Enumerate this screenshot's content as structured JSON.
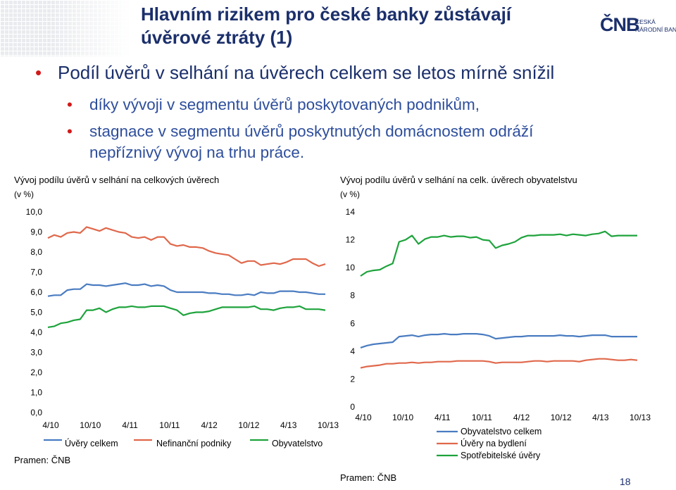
{
  "slide": {
    "title": "Hlavním rizikem pro české banky zůstávají úvěrové ztráty (1)",
    "logo": {
      "mark": "ČNB",
      "line1": "ČESKÁ",
      "line2": "NÁRODNÍ BANKA"
    },
    "bullet_main": "Podíl úvěrů v selhání na úvěrech celkem se letos mírně snížil",
    "bullet_sub1": "díky vývoji v segmentu úvěrů poskytovaných podnikům,",
    "bullet_sub2_line1": "stagnace v segmentu úvěrů poskytnutých domácnostem odráží",
    "bullet_sub2_line2": "nepříznivý vývoj na trhu práce.",
    "page_number": "18",
    "colors": {
      "blue": "#4a7cc1",
      "red": "#e0684b",
      "green": "#1ea33c",
      "title": "#1b2f6b",
      "bullet": "#d11a1a"
    }
  },
  "chart_data": [
    {
      "type": "line",
      "title": "Vývoj podílu úvěrů v selhání na celkových úvěrech",
      "unit": "(v %)",
      "source": "Pramen: ČNB",
      "ylim": [
        0,
        10
      ],
      "y_ticks": [
        "0,0",
        "1,0",
        "2,0",
        "3,0",
        "4,0",
        "5,0",
        "6,0",
        "7,0",
        "8,0",
        "9,0",
        "10,0"
      ],
      "x_ticks": [
        "4/10",
        "10/10",
        "4/11",
        "10/11",
        "4/12",
        "10/12",
        "4/13",
        "10/13"
      ],
      "x_range": [
        0,
        42
      ],
      "legend_position": "bottom",
      "series": [
        {
          "name": "Úvěry celkem",
          "color": "#4a7cc1",
          "values": [
            5.8,
            5.85,
            5.85,
            6.1,
            6.15,
            6.15,
            6.4,
            6.35,
            6.35,
            6.3,
            6.35,
            6.4,
            6.45,
            6.35,
            6.35,
            6.4,
            6.3,
            6.35,
            6.3,
            6.1,
            6.0,
            6.0,
            6.0,
            6.0,
            6.0,
            5.95,
            5.95,
            5.9,
            5.9,
            5.85,
            5.85,
            5.9,
            5.85,
            6.0,
            5.95,
            5.95,
            6.05,
            6.05,
            6.05,
            6.0,
            6.0,
            5.95,
            5.9,
            5.9
          ]
        },
        {
          "name": "Nefinanční podniky",
          "color": "#e0684b",
          "values": [
            8.7,
            8.85,
            8.75,
            8.95,
            9.0,
            8.95,
            9.25,
            9.15,
            9.05,
            9.2,
            9.1,
            9.0,
            8.95,
            8.75,
            8.7,
            8.75,
            8.6,
            8.75,
            8.75,
            8.4,
            8.3,
            8.35,
            8.25,
            8.25,
            8.2,
            8.05,
            7.95,
            7.9,
            7.85,
            7.65,
            7.45,
            7.55,
            7.55,
            7.35,
            7.4,
            7.45,
            7.4,
            7.5,
            7.65,
            7.65,
            7.65,
            7.45,
            7.3,
            7.4
          ]
        },
        {
          "name": "Obyvatelstvo",
          "color": "#1ea33c",
          "values": [
            4.25,
            4.3,
            4.45,
            4.5,
            4.6,
            4.65,
            5.1,
            5.1,
            5.2,
            5.0,
            5.15,
            5.25,
            5.25,
            5.3,
            5.25,
            5.25,
            5.3,
            5.3,
            5.3,
            5.2,
            5.1,
            4.85,
            4.95,
            5.0,
            5.0,
            5.05,
            5.15,
            5.25,
            5.25,
            5.25,
            5.25,
            5.25,
            5.3,
            5.15,
            5.15,
            5.1,
            5.2,
            5.25,
            5.25,
            5.3,
            5.15,
            5.15,
            5.15,
            5.1
          ]
        }
      ]
    },
    {
      "type": "line",
      "title": "Vývoj podílu úvěrů v selhání na celk. úvěrech obyvatelstvu",
      "unit": "(v %)",
      "source": "Pramen: ČNB",
      "ylim": [
        0,
        14
      ],
      "y_ticks": [
        "0",
        "2",
        "4",
        "6",
        "8",
        "10",
        "12",
        "14"
      ],
      "x_ticks": [
        "4/10",
        "10/10",
        "4/11",
        "10/11",
        "4/12",
        "10/12",
        "4/13",
        "10/13"
      ],
      "x_range": [
        0,
        42
      ],
      "legend_position": "bottom-right",
      "series": [
        {
          "name": "Obyvatelstvo celkem",
          "color": "#4a7cc1",
          "values": [
            4.25,
            4.4,
            4.5,
            4.55,
            4.6,
            4.65,
            5.05,
            5.1,
            5.15,
            5.05,
            5.15,
            5.2,
            5.2,
            5.25,
            5.2,
            5.2,
            5.25,
            5.25,
            5.25,
            5.2,
            5.1,
            4.9,
            4.95,
            5.0,
            5.05,
            5.05,
            5.1,
            5.1,
            5.1,
            5.1,
            5.1,
            5.15,
            5.1,
            5.1,
            5.05,
            5.1,
            5.15,
            5.15,
            5.15,
            5.05,
            5.05,
            5.05,
            5.05,
            5.05
          ]
        },
        {
          "name": "Úvěry na bydlení",
          "color": "#e0684b",
          "values": [
            2.8,
            2.9,
            2.95,
            3.0,
            3.1,
            3.1,
            3.15,
            3.15,
            3.2,
            3.15,
            3.2,
            3.2,
            3.25,
            3.25,
            3.25,
            3.3,
            3.3,
            3.3,
            3.3,
            3.3,
            3.25,
            3.15,
            3.2,
            3.2,
            3.2,
            3.2,
            3.25,
            3.3,
            3.3,
            3.25,
            3.3,
            3.3,
            3.3,
            3.3,
            3.25,
            3.35,
            3.4,
            3.45,
            3.45,
            3.4,
            3.35,
            3.35,
            3.4,
            3.35
          ]
        },
        {
          "name": "Spotřebitelské úvěry",
          "color": "#1ea33c",
          "values": [
            9.4,
            9.7,
            9.8,
            9.85,
            10.1,
            10.3,
            11.85,
            12.0,
            12.3,
            11.7,
            12.05,
            12.2,
            12.2,
            12.3,
            12.2,
            12.25,
            12.25,
            12.15,
            12.2,
            12.0,
            11.95,
            11.4,
            11.6,
            11.7,
            11.85,
            12.15,
            12.3,
            12.3,
            12.35,
            12.35,
            12.35,
            12.4,
            12.3,
            12.4,
            12.35,
            12.3,
            12.4,
            12.45,
            12.6,
            12.25,
            12.3,
            12.3,
            12.3,
            12.3
          ]
        }
      ]
    }
  ]
}
